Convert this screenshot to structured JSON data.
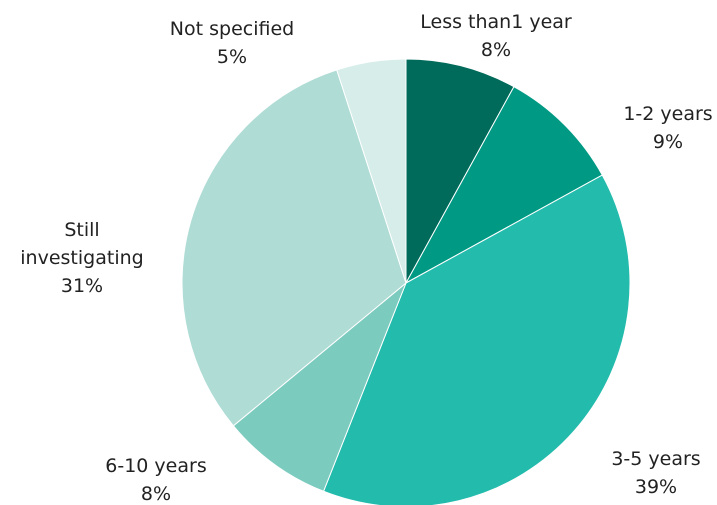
{
  "chart_data": {
    "type": "pie",
    "start_angle_deg": 0,
    "direction": "clockwise",
    "slices": [
      {
        "label_lines": [
          "Less than1 year"
        ],
        "percent_label": "8%",
        "value": 8,
        "color": "#006b5b"
      },
      {
        "label_lines": [
          "1-2 years"
        ],
        "percent_label": "9%",
        "value": 9,
        "color": "#009a84"
      },
      {
        "label_lines": [
          "3-5 years"
        ],
        "percent_label": "39%",
        "value": 39,
        "color": "#22bbac"
      },
      {
        "label_lines": [
          "6-10 years"
        ],
        "percent_label": "8%",
        "value": 8,
        "color": "#7ccbbf"
      },
      {
        "label_lines": [
          "Still",
          "investigating"
        ],
        "percent_label": "31%",
        "value": 31,
        "color": "#afdcd5"
      },
      {
        "label_lines": [
          "Not specified"
        ],
        "percent_label": "5%",
        "value": 5,
        "color": "#d6ede9"
      }
    ]
  }
}
